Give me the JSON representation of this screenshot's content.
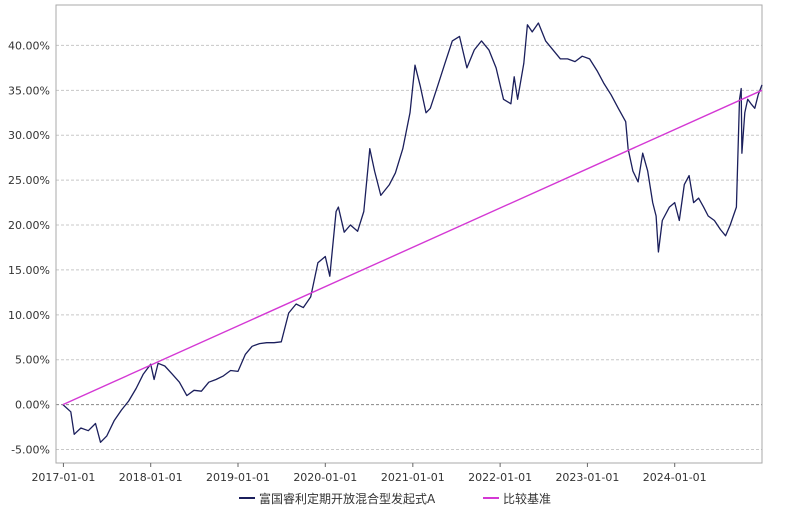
{
  "chart_data": {
    "type": "line",
    "title": "",
    "xlabel": "",
    "ylabel": "",
    "x_ticks": [
      "2017-01-01",
      "2018-01-01",
      "2019-01-01",
      "2020-01-01",
      "2021-01-01",
      "2022-01-01",
      "2023-01-01",
      "2024-01-01"
    ],
    "y_ticks": [
      "-5.00%",
      "0.00%",
      "5.00%",
      "10.00%",
      "15.00%",
      "20.00%",
      "25.00%",
      "30.00%",
      "35.00%",
      "40.00%"
    ],
    "xlim": [
      "2016-12-01",
      "2024-12-31"
    ],
    "ylim": [
      -6.5,
      44.5
    ],
    "grid": true,
    "legend_position": "bottom-center",
    "series": [
      {
        "name": "富国睿利定期开放混合型发起式A",
        "color": "#1b1f5c",
        "points": [
          [
            "2016-12-30",
            0.0
          ],
          [
            "2017-02-01",
            -0.8
          ],
          [
            "2017-02-15",
            -3.3
          ],
          [
            "2017-03-15",
            -2.6
          ],
          [
            "2017-04-15",
            -2.9
          ],
          [
            "2017-05-15",
            -2.1
          ],
          [
            "2017-06-05",
            -4.2
          ],
          [
            "2017-07-01",
            -3.5
          ],
          [
            "2017-08-01",
            -1.8
          ],
          [
            "2017-09-01",
            -0.6
          ],
          [
            "2017-10-01",
            0.4
          ],
          [
            "2017-11-01",
            1.8
          ],
          [
            "2017-12-01",
            3.4
          ],
          [
            "2018-01-01",
            4.5
          ],
          [
            "2018-01-15",
            2.8
          ],
          [
            "2018-02-01",
            4.6
          ],
          [
            "2018-03-01",
            4.3
          ],
          [
            "2018-04-01",
            3.4
          ],
          [
            "2018-05-01",
            2.5
          ],
          [
            "2018-06-01",
            1.0
          ],
          [
            "2018-07-01",
            1.6
          ],
          [
            "2018-08-01",
            1.5
          ],
          [
            "2018-09-01",
            2.5
          ],
          [
            "2018-10-01",
            2.8
          ],
          [
            "2018-11-01",
            3.2
          ],
          [
            "2018-12-01",
            3.8
          ],
          [
            "2019-01-01",
            3.7
          ],
          [
            "2019-02-01",
            5.6
          ],
          [
            "2019-03-01",
            6.5
          ],
          [
            "2019-04-01",
            6.8
          ],
          [
            "2019-05-01",
            6.9
          ],
          [
            "2019-06-01",
            6.9
          ],
          [
            "2019-07-01",
            7.0
          ],
          [
            "2019-08-01",
            10.2
          ],
          [
            "2019-09-01",
            11.2
          ],
          [
            "2019-10-01",
            10.8
          ],
          [
            "2019-11-01",
            12.0
          ],
          [
            "2019-12-01",
            15.8
          ],
          [
            "2020-01-01",
            16.5
          ],
          [
            "2020-01-20",
            14.3
          ],
          [
            "2020-02-15",
            21.5
          ],
          [
            "2020-02-25",
            22.0
          ],
          [
            "2020-03-20",
            19.2
          ],
          [
            "2020-04-15",
            20.0
          ],
          [
            "2020-05-15",
            19.3
          ],
          [
            "2020-06-10",
            21.5
          ],
          [
            "2020-07-05",
            28.5
          ],
          [
            "2020-07-25",
            26.0
          ],
          [
            "2020-08-20",
            23.3
          ],
          [
            "2020-09-25",
            24.5
          ],
          [
            "2020-10-20",
            25.8
          ],
          [
            "2020-11-20",
            28.5
          ],
          [
            "2020-12-20",
            32.5
          ],
          [
            "2021-01-10",
            37.8
          ],
          [
            "2021-02-01",
            35.5
          ],
          [
            "2021-02-25",
            32.5
          ],
          [
            "2021-03-15",
            33.0
          ],
          [
            "2021-04-15",
            35.5
          ],
          [
            "2021-05-15",
            38.0
          ],
          [
            "2021-06-15",
            40.5
          ],
          [
            "2021-07-15",
            41.0
          ],
          [
            "2021-08-15",
            37.5
          ],
          [
            "2021-09-15",
            39.5
          ],
          [
            "2021-10-15",
            40.5
          ],
          [
            "2021-11-15",
            39.5
          ],
          [
            "2021-12-15",
            37.5
          ],
          [
            "2022-01-15",
            34.0
          ],
          [
            "2022-02-15",
            33.5
          ],
          [
            "2022-03-01",
            36.5
          ],
          [
            "2022-03-15",
            34.0
          ],
          [
            "2022-04-10",
            38.0
          ],
          [
            "2022-04-25",
            42.3
          ],
          [
            "2022-05-15",
            41.5
          ],
          [
            "2022-06-10",
            42.5
          ],
          [
            "2022-07-10",
            40.5
          ],
          [
            "2022-08-10",
            39.5
          ],
          [
            "2022-09-10",
            38.5
          ],
          [
            "2022-10-10",
            38.5
          ],
          [
            "2022-11-10",
            38.2
          ],
          [
            "2022-12-10",
            38.8
          ],
          [
            "2023-01-10",
            38.5
          ],
          [
            "2023-02-10",
            37.2
          ],
          [
            "2023-03-10",
            35.8
          ],
          [
            "2023-04-10",
            34.5
          ],
          [
            "2023-05-10",
            33.0
          ],
          [
            "2023-06-10",
            31.5
          ],
          [
            "2023-06-20",
            28.5
          ],
          [
            "2023-07-10",
            26.0
          ],
          [
            "2023-08-01",
            24.8
          ],
          [
            "2023-08-20",
            28.0
          ],
          [
            "2023-09-10",
            26.0
          ],
          [
            "2023-10-01",
            22.5
          ],
          [
            "2023-10-15",
            21.0
          ],
          [
            "2023-10-25",
            17.0
          ],
          [
            "2023-11-10",
            20.5
          ],
          [
            "2023-12-10",
            22.0
          ],
          [
            "2024-01-01",
            22.5
          ],
          [
            "2024-01-20",
            20.5
          ],
          [
            "2024-02-10",
            24.5
          ],
          [
            "2024-03-01",
            25.5
          ],
          [
            "2024-03-20",
            22.5
          ],
          [
            "2024-04-10",
            23.0
          ],
          [
            "2024-05-01",
            22.0
          ],
          [
            "2024-05-20",
            21.0
          ],
          [
            "2024-06-15",
            20.5
          ],
          [
            "2024-07-10",
            19.5
          ],
          [
            "2024-08-01",
            18.8
          ],
          [
            "2024-08-20",
            20.0
          ],
          [
            "2024-09-15",
            22.0
          ],
          [
            "2024-09-28",
            34.0
          ],
          [
            "2024-10-05",
            35.2
          ],
          [
            "2024-10-08",
            28.0
          ],
          [
            "2024-10-20",
            32.5
          ],
          [
            "2024-11-01",
            34.0
          ],
          [
            "2024-11-15",
            33.5
          ],
          [
            "2024-12-01",
            33.0
          ],
          [
            "2024-12-15",
            34.5
          ],
          [
            "2024-12-31",
            35.6
          ]
        ]
      },
      {
        "name": "比较基准",
        "color": "#d438d4",
        "points": [
          [
            "2016-12-30",
            0.0
          ],
          [
            "2024-12-31",
            35.0
          ]
        ]
      }
    ]
  }
}
